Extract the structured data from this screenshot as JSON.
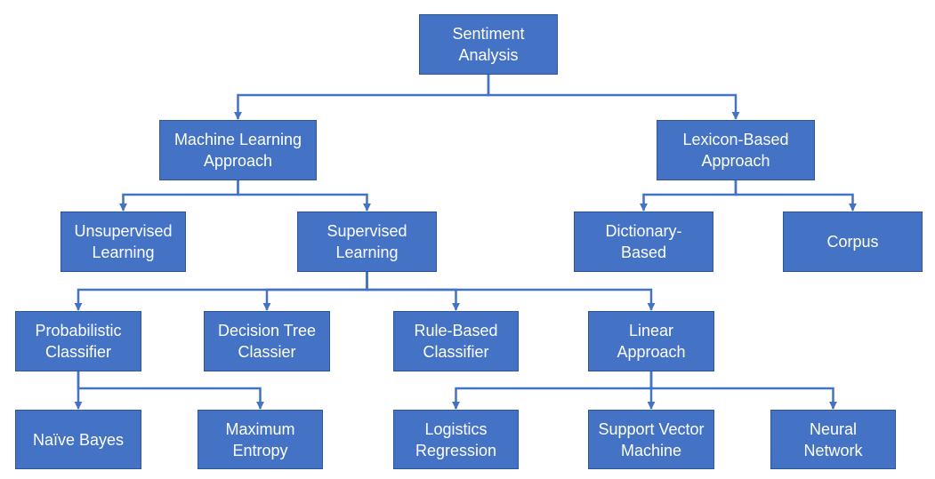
{
  "colors": {
    "box_fill": "#4472C4",
    "box_border": "#2F5597",
    "connector": "#4472C4",
    "text": "#FFFFFF"
  },
  "nodes": {
    "sentiment_analysis": "Sentiment\nAnalysis",
    "machine_learning": "Machine Learning\nApproach",
    "lexicon_based": "Lexicon-Based\nApproach",
    "unsupervised": "Unsupervised\nLearning",
    "supervised": "Supervised\nLearning",
    "dictionary_based": "Dictionary-\nBased",
    "corpus": "Corpus",
    "probabilistic": "Probabilistic\nClassifier",
    "decision_tree": "Decision Tree\nClassier",
    "rule_based": "Rule-Based\nClassifier",
    "linear": "Linear\nApproach",
    "naive_bayes": "Naïve Bayes",
    "maximum_entropy": "Maximum\nEntropy",
    "logistics_regression": "Logistics\nRegression",
    "svm": "Support Vector\nMachine",
    "neural_network": "Neural\nNetwork"
  },
  "edges": [
    [
      "sentiment_analysis",
      "machine_learning"
    ],
    [
      "sentiment_analysis",
      "lexicon_based"
    ],
    [
      "machine_learning",
      "unsupervised"
    ],
    [
      "machine_learning",
      "supervised"
    ],
    [
      "lexicon_based",
      "dictionary_based"
    ],
    [
      "lexicon_based",
      "corpus"
    ],
    [
      "supervised",
      "probabilistic"
    ],
    [
      "supervised",
      "decision_tree"
    ],
    [
      "supervised",
      "rule_based"
    ],
    [
      "supervised",
      "linear"
    ],
    [
      "probabilistic",
      "naive_bayes"
    ],
    [
      "probabilistic",
      "maximum_entropy"
    ],
    [
      "linear",
      "logistics_regression"
    ],
    [
      "linear",
      "svm"
    ],
    [
      "linear",
      "neural_network"
    ]
  ]
}
